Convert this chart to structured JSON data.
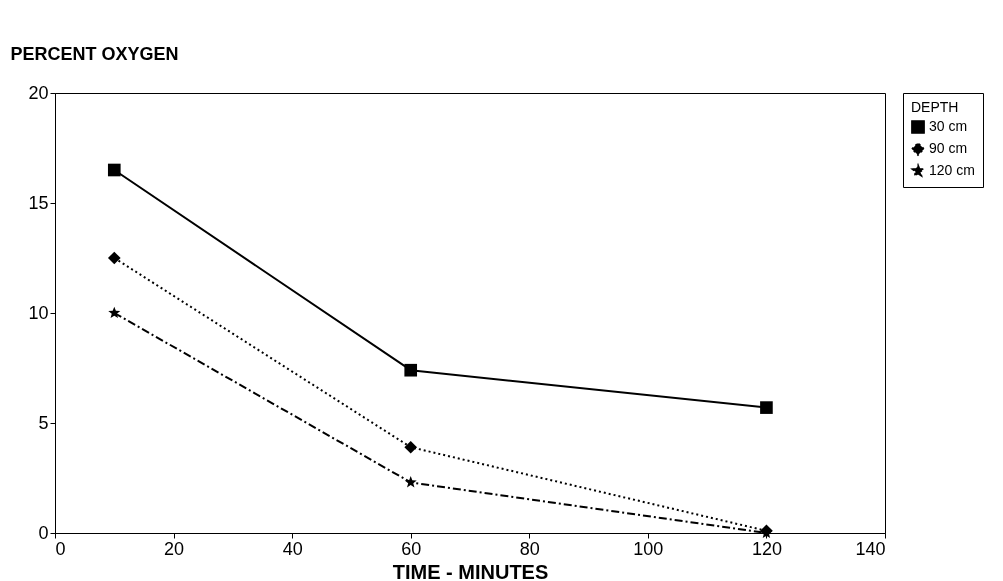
{
  "chart_data": {
    "type": "line",
    "xlabel": "TIME - MINUTES",
    "ylabel": "PERCENT OXYGEN",
    "legend_title": "DEPTH",
    "x": [
      10,
      60,
      120
    ],
    "series": [
      {
        "name": "30 cm",
        "color": "#000000",
        "values": [
          16.5,
          7.4,
          5.7
        ],
        "marker": "square",
        "line_style": "solid"
      },
      {
        "name": "90 cm",
        "color": "#000000",
        "values": [
          12.5,
          3.9,
          0.1
        ],
        "marker": "diamond",
        "line_style": "dotted"
      },
      {
        "name": "120 cm",
        "color": "#000000",
        "values": [
          10,
          2.3,
          0
        ],
        "marker": "star",
        "line_style": "dashed"
      }
    ],
    "xlim": [
      0,
      140
    ],
    "xticks": [
      0,
      20,
      40,
      60,
      80,
      100,
      120,
      140
    ],
    "ylim": [
      0,
      20
    ],
    "yticks": [
      0,
      5,
      10,
      15,
      20
    ],
    "grid": false,
    "legend": "top right"
  }
}
